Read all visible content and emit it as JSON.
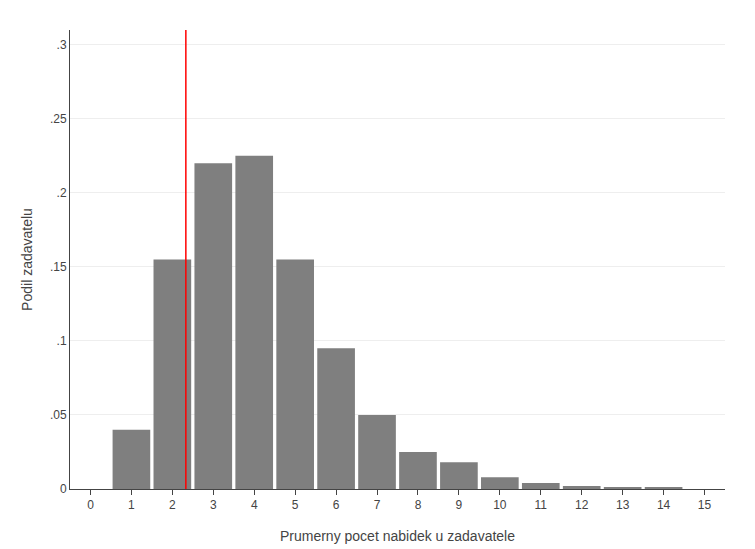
{
  "chart_data": {
    "type": "bar",
    "x": [
      1,
      2,
      3,
      4,
      5,
      6,
      7,
      8,
      9,
      10,
      11,
      12,
      13,
      14,
      15
    ],
    "values": [
      0.04,
      0.155,
      0.22,
      0.225,
      0.155,
      0.095,
      0.05,
      0.025,
      0.018,
      0.008,
      0.004,
      0.002,
      0.001,
      0.001,
      0.0
    ],
    "color": "#7f7f7f",
    "reference_line": {
      "x": 2.33,
      "color": "#ff0000"
    },
    "x_label": "Prumerny pocet nabidek u zadavatele",
    "y_label": "Podil zadavatelu",
    "xlim": [
      -0.5,
      15.5
    ],
    "ylim": [
      0,
      0.31
    ],
    "xticks": [
      0,
      1,
      2,
      3,
      4,
      5,
      6,
      7,
      8,
      9,
      10,
      11,
      12,
      13,
      14,
      15
    ],
    "yticks": [
      0,
      {
        "value": 0.05,
        "label": ".05"
      },
      {
        "value": 0.1,
        "label": ".1"
      },
      {
        "value": 0.15,
        "label": ".15"
      },
      {
        "value": 0.2,
        "label": ".2"
      },
      {
        "value": 0.25,
        "label": ".25"
      },
      {
        "value": 0.3,
        "label": ".3"
      }
    ],
    "grid": true
  }
}
